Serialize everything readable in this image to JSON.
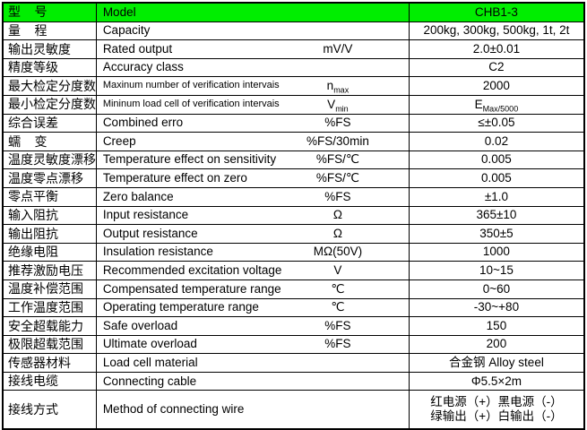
{
  "table": {
    "header": {
      "col_cn": "型    号",
      "col_en": "Model",
      "col_value": "CHB1-3",
      "bg": "#00ee00"
    },
    "rows": [
      {
        "cn": "量    程",
        "en": "Capacity",
        "unit": "",
        "value": "200kg, 300kg, 500kg, 1t, 2t"
      },
      {
        "cn": "输出灵敏度",
        "en": "Rated output",
        "unit": "mV/V",
        "value": "2.0±0.01"
      },
      {
        "cn": "精度等级",
        "en": "Accuracy class",
        "unit": "",
        "value": "C2"
      },
      {
        "cn": "最大检定分度数",
        "en": "Maxinum number of verification intervais",
        "en_small": true,
        "unit_base": "n",
        "unit_sub": "max",
        "value": "2000"
      },
      {
        "cn": "最小检定分度数",
        "en": "Mininum load cell of verification intervais",
        "en_small": true,
        "unit_base": "V",
        "unit_sub": "min",
        "value_base": "E",
        "value_sub": "Max/5000"
      },
      {
        "cn": "综合误差",
        "en": "Combined erro",
        "unit": "%FS",
        "value": "≤±0.05"
      },
      {
        "cn": "蠕    变",
        "en": "Creep",
        "unit": "%FS/30min",
        "value": "0.02"
      },
      {
        "cn": "温度灵敏度漂移",
        "en": "Temperature effect on sensitivity",
        "unit": "%FS/℃",
        "value": "0.005"
      },
      {
        "cn": "温度零点漂移",
        "en": "Temperature effect on zero",
        "unit": "%FS/℃",
        "value": "0.005"
      },
      {
        "cn": "零点平衡",
        "en": "Zero balance",
        "unit": "%FS",
        "value": "±1.0"
      },
      {
        "cn": "输入阻抗",
        "en": "Input resistance",
        "unit": "Ω",
        "value": "365±10"
      },
      {
        "cn": "输出阻抗",
        "en": "Output resistance",
        "unit": "Ω",
        "value": "350±5"
      },
      {
        "cn": "绝缘电阻",
        "en": "Insulation resistance",
        "unit": "MΩ(50V)",
        "value": "1000"
      },
      {
        "cn": "推荐激励电压",
        "en": "Recommended excitation voltage",
        "unit": "V",
        "value": "10~15"
      },
      {
        "cn": "温度补偿范围",
        "en": "Compensated temperature range",
        "unit": "℃",
        "value": "0~60"
      },
      {
        "cn": "工作温度范围",
        "en": "Operating temperature range",
        "unit": "℃",
        "value": "-30~+80"
      },
      {
        "cn": "安全超载能力",
        "en": "Safe overload",
        "unit": "%FS",
        "value": "150"
      },
      {
        "cn": "极限超载范围",
        "en": "Ultimate overload",
        "unit": "%FS",
        "value": "200"
      },
      {
        "cn": "传感器材料",
        "en": "Load cell material",
        "unit": "",
        "value": "合金钢 Alloy steel"
      },
      {
        "cn": "接线电缆",
        "en": "Connecting cable",
        "unit": "",
        "value": "Φ5.5×2m"
      },
      {
        "cn": "接线方式",
        "en": "Method of connecting wire",
        "unit": "",
        "value_lines": [
          "红电源（+）黑电源（-）",
          "绿输出（+）白输出（-）"
        ],
        "tall": true
      }
    ]
  }
}
